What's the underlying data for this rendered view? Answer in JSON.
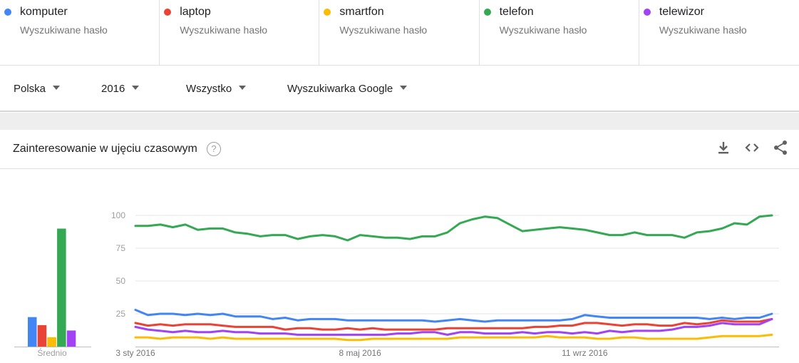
{
  "terms": [
    {
      "name": "komputer",
      "sub": "Wyszukiwane hasło",
      "color": "#4285f4"
    },
    {
      "name": "laptop",
      "sub": "Wyszukiwane hasło",
      "color": "#ea4335"
    },
    {
      "name": "smartfon",
      "sub": "Wyszukiwane hasło",
      "color": "#fbbc04"
    },
    {
      "name": "telefon",
      "sub": "Wyszukiwane hasło",
      "color": "#34a853"
    },
    {
      "name": "telewizor",
      "sub": "Wyszukiwane hasło",
      "color": "#a142f4"
    }
  ],
  "filters": {
    "region": "Polska",
    "time": "2016",
    "category": "Wszystko",
    "property": "Wyszukiwarka Google"
  },
  "panel": {
    "title": "Zainteresowanie w ujęciu czasowym",
    "help": "?",
    "icons": [
      "download-icon",
      "embed-icon",
      "share-icon"
    ]
  },
  "chart_data": [
    {
      "type": "bar",
      "categories": [
        "komputer",
        "laptop",
        "smartfon",
        "telefon",
        "telewizor"
      ],
      "values": [
        22,
        16,
        7,
        88,
        12
      ],
      "colors": [
        "#4285f4",
        "#ea4335",
        "#fbbc04",
        "#34a853",
        "#a142f4"
      ],
      "xlabel": "Średnio",
      "ylim": [
        0,
        100
      ]
    },
    {
      "type": "line",
      "x_start": "2016-01-03",
      "x_step_days": 7,
      "x_tick_labels": [
        {
          "label": "3 sty 2016",
          "index": 0
        },
        {
          "label": "8 maj 2016",
          "index": 18
        },
        {
          "label": "11 wrz 2016",
          "index": 36
        }
      ],
      "yticks": [
        25,
        50,
        75,
        100
      ],
      "ylim": [
        0,
        100
      ],
      "grid": true,
      "series": [
        {
          "name": "telefon",
          "color": "#34a853",
          "values": [
            92,
            92,
            93,
            91,
            93,
            89,
            90,
            90,
            87,
            86,
            84,
            85,
            85,
            82,
            84,
            85,
            84,
            81,
            85,
            84,
            83,
            83,
            82,
            84,
            84,
            87,
            94,
            97,
            99,
            98,
            93,
            88,
            89,
            90,
            91,
            90,
            89,
            87,
            85,
            85,
            87,
            85,
            85,
            85,
            83,
            87,
            88,
            90,
            94,
            93,
            99,
            100
          ]
        },
        {
          "name": "komputer",
          "color": "#4285f4",
          "values": [
            28,
            24,
            25,
            25,
            24,
            25,
            24,
            25,
            23,
            23,
            23,
            21,
            22,
            20,
            21,
            21,
            21,
            20,
            20,
            20,
            20,
            20,
            20,
            20,
            19,
            20,
            21,
            20,
            19,
            20,
            20,
            20,
            20,
            20,
            20,
            21,
            24,
            23,
            22,
            22,
            22,
            22,
            22,
            22,
            22,
            22,
            21,
            22,
            21,
            22,
            22,
            25
          ]
        },
        {
          "name": "laptop",
          "color": "#ea4335",
          "values": [
            18,
            16,
            17,
            16,
            17,
            17,
            17,
            16,
            15,
            15,
            15,
            15,
            13,
            14,
            14,
            13,
            13,
            14,
            13,
            14,
            13,
            13,
            13,
            13,
            13,
            14,
            14,
            14,
            14,
            14,
            14,
            14,
            15,
            15,
            16,
            16,
            18,
            18,
            17,
            16,
            17,
            17,
            16,
            16,
            18,
            17,
            18,
            20,
            19,
            19,
            19,
            21
          ]
        },
        {
          "name": "telewizor",
          "color": "#a142f4",
          "values": [
            15,
            13,
            12,
            11,
            12,
            11,
            11,
            12,
            11,
            11,
            10,
            10,
            10,
            9,
            9,
            9,
            9,
            9,
            9,
            9,
            9,
            10,
            10,
            11,
            11,
            9,
            11,
            11,
            10,
            10,
            10,
            11,
            10,
            11,
            11,
            10,
            11,
            10,
            12,
            11,
            12,
            12,
            12,
            13,
            15,
            15,
            16,
            18,
            17,
            17,
            17,
            21
          ]
        },
        {
          "name": "smartfon",
          "color": "#fbbc04",
          "values": [
            7,
            7,
            6,
            7,
            7,
            7,
            6,
            7,
            6,
            6,
            6,
            6,
            6,
            6,
            6,
            6,
            6,
            5,
            5,
            6,
            6,
            6,
            6,
            6,
            6,
            6,
            7,
            7,
            7,
            7,
            7,
            7,
            7,
            8,
            7,
            7,
            7,
            6,
            6,
            7,
            7,
            6,
            6,
            6,
            6,
            6,
            7,
            8,
            8,
            8,
            8,
            9
          ]
        }
      ]
    }
  ]
}
